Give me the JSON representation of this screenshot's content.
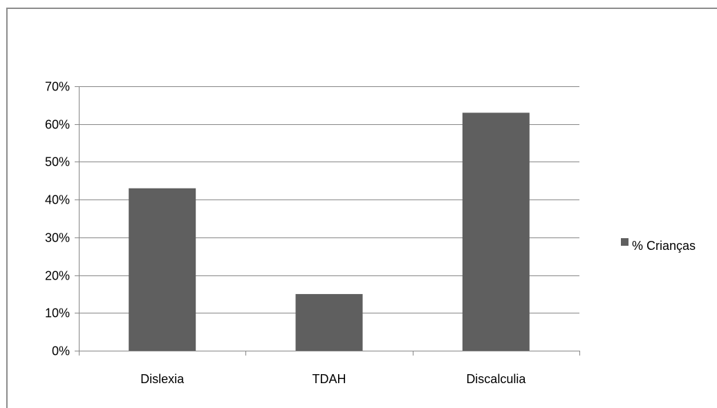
{
  "chart_data": {
    "type": "bar",
    "categories": [
      "Dislexia",
      "TDAH",
      "Discalculia"
    ],
    "series": [
      {
        "name": "% Crianças",
        "values": [
          43,
          15,
          63
        ]
      }
    ],
    "y_unit": "%",
    "ylim": [
      0,
      70
    ],
    "y_ticks": [
      "0%",
      "10%",
      "20%",
      "30%",
      "40%",
      "50%",
      "60%",
      "70%"
    ],
    "title": "",
    "xlabel": "",
    "ylabel": "",
    "grid": true,
    "legend_position": "right",
    "colors": {
      "bar": "#5f5f5f",
      "grid": "#868686",
      "axis": "#868686"
    }
  }
}
